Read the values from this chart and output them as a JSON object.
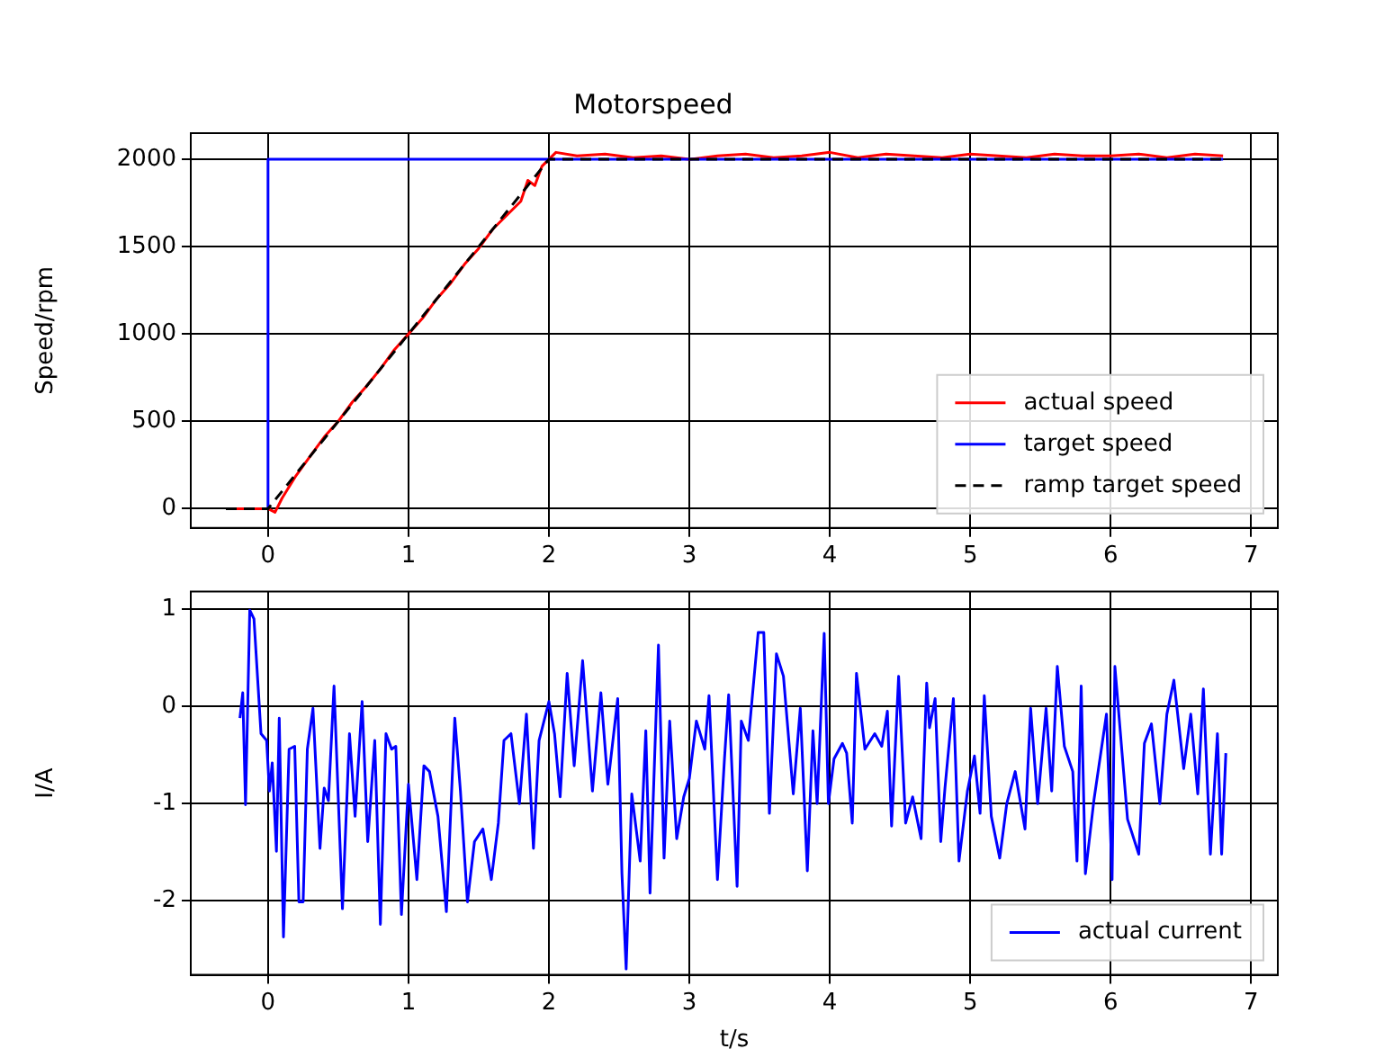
{
  "chart_data": [
    {
      "type": "line",
      "title": "Motorspeed",
      "ylabel": "Speed/rpm",
      "xlim": [
        -0.55,
        7.19
      ],
      "xticks": [
        0,
        1,
        2,
        3,
        4,
        5,
        6,
        7
      ],
      "ylim": [
        -110,
        2150
      ],
      "yticks": [
        0,
        500,
        1000,
        1500,
        2000
      ],
      "grid": true,
      "legend": "lower right",
      "series": [
        {
          "name": "actual speed",
          "color": "#ff0000",
          "x": [
            -0.3,
            0,
            0.05,
            0.1,
            0.2,
            0.3,
            0.4,
            0.5,
            0.6,
            0.7,
            0.8,
            0.9,
            1.0,
            1.1,
            1.2,
            1.3,
            1.4,
            1.5,
            1.6,
            1.7,
            1.8,
            1.85,
            1.9,
            1.95,
            2.0,
            2.05,
            2.2,
            2.4,
            2.6,
            2.8,
            3.0,
            3.2,
            3.4,
            3.6,
            3.8,
            4.0,
            4.2,
            4.4,
            4.6,
            4.8,
            5.0,
            5.2,
            5.4,
            5.6,
            5.8,
            6.0,
            6.2,
            6.4,
            6.6,
            6.8
          ],
          "values": [
            0,
            0,
            -20,
            60,
            190,
            300,
            410,
            500,
            610,
            700,
            800,
            910,
            1000,
            1090,
            1200,
            1290,
            1400,
            1490,
            1600,
            1680,
            1760,
            1880,
            1850,
            1960,
            2000,
            2040,
            2020,
            2030,
            2010,
            2020,
            2000,
            2020,
            2030,
            2010,
            2020,
            2040,
            2010,
            2030,
            2020,
            2010,
            2030,
            2020,
            2010,
            2030,
            2020,
            2020,
            2030,
            2010,
            2030,
            2020
          ]
        },
        {
          "name": "target speed",
          "color": "#0000ff",
          "x": [
            0,
            0,
            6.8
          ],
          "values": [
            0,
            2000,
            2000
          ]
        },
        {
          "name": "ramp target speed",
          "color": "#000000",
          "line_style": "dashed",
          "x": [
            -0.3,
            0,
            2,
            6.8
          ],
          "values": [
            0,
            0,
            2000,
            2000
          ]
        }
      ]
    },
    {
      "type": "line",
      "xlabel": "t/s",
      "ylabel": "I/A",
      "xlim": [
        -0.55,
        7.19
      ],
      "xticks": [
        0,
        1,
        2,
        3,
        4,
        5,
        6,
        7
      ],
      "ylim": [
        -2.76,
        1.18
      ],
      "yticks": [
        -2,
        -1,
        0,
        1
      ],
      "grid": true,
      "legend": "lower right",
      "series": [
        {
          "name": "actual current",
          "color": "#0000ff",
          "x": [
            -0.2,
            -0.18,
            -0.16,
            -0.13,
            -0.1,
            -0.05,
            -0.01,
            0.01,
            0.03,
            0.06,
            0.08,
            0.11,
            0.15,
            0.19,
            0.22,
            0.25,
            0.28,
            0.32,
            0.37,
            0.4,
            0.43,
            0.47,
            0.53,
            0.58,
            0.62,
            0.67,
            0.71,
            0.76,
            0.8,
            0.84,
            0.88,
            0.91,
            0.95,
            1.0,
            1.06,
            1.11,
            1.15,
            1.21,
            1.27,
            1.33,
            1.37,
            1.42,
            1.47,
            1.53,
            1.59,
            1.64,
            1.68,
            1.73,
            1.79,
            1.84,
            1.89,
            1.93,
            2.0,
            2.04,
            2.08,
            2.13,
            2.18,
            2.24,
            2.31,
            2.37,
            2.42,
            2.49,
            2.52,
            2.55,
            2.59,
            2.65,
            2.69,
            2.72,
            2.78,
            2.82,
            2.86,
            2.91,
            2.96,
            3.0,
            3.05,
            3.11,
            3.14,
            3.2,
            3.25,
            3.28,
            3.34,
            3.37,
            3.42,
            3.49,
            3.53,
            3.57,
            3.62,
            3.67,
            3.74,
            3.79,
            3.84,
            3.88,
            3.91,
            3.96,
            3.99,
            4.03,
            4.09,
            4.12,
            4.16,
            4.19,
            4.25,
            4.32,
            4.37,
            4.41,
            4.44,
            4.49,
            4.54,
            4.59,
            4.65,
            4.69,
            4.71,
            4.75,
            4.79,
            4.82,
            4.88,
            4.92,
            4.98,
            5.03,
            5.07,
            5.1,
            5.15,
            5.21,
            5.26,
            5.32,
            5.39,
            5.43,
            5.48,
            5.54,
            5.58,
            5.62,
            5.67,
            5.73,
            5.76,
            5.79,
            5.82,
            5.88,
            5.97,
            6.01,
            6.03,
            6.12,
            6.2,
            6.24,
            6.29,
            6.35,
            6.4,
            6.45,
            6.52,
            6.57,
            6.62,
            6.66,
            6.71,
            6.76,
            6.79,
            6.82
          ],
          "values": [
            -0.12,
            0.14,
            -1.01,
            0.99,
            0.9,
            -0.28,
            -0.35,
            -0.87,
            -0.58,
            -1.49,
            -0.12,
            -2.37,
            -0.44,
            -0.41,
            -2.01,
            -2.01,
            -0.44,
            -0.02,
            -1.46,
            -0.84,
            -0.97,
            0.21,
            -2.08,
            -0.28,
            -1.13,
            0.05,
            -1.39,
            -0.35,
            -2.24,
            -0.28,
            -0.44,
            -0.41,
            -2.14,
            -0.8,
            -1.78,
            -0.61,
            -0.67,
            -1.13,
            -2.11,
            -0.12,
            -0.87,
            -2.01,
            -1.39,
            -1.26,
            -1.78,
            -1.2,
            -0.35,
            -0.28,
            -1.0,
            -0.08,
            -1.46,
            -0.35,
            0.05,
            -0.28,
            -0.93,
            0.34,
            -0.61,
            0.47,
            -0.87,
            0.14,
            -0.8,
            0.08,
            -1.72,
            -2.7,
            -0.9,
            -1.59,
            -0.25,
            -1.92,
            0.63,
            -1.56,
            -0.15,
            -1.36,
            -0.93,
            -0.74,
            -0.15,
            -0.44,
            0.11,
            -1.78,
            -0.54,
            0.12,
            -1.85,
            -0.15,
            -0.35,
            0.76,
            0.76,
            -1.1,
            0.54,
            0.31,
            -0.9,
            -0.02,
            -1.69,
            -0.25,
            -1.0,
            0.75,
            -1.0,
            -0.54,
            -0.38,
            -0.48,
            -1.2,
            0.34,
            -0.44,
            -0.28,
            -0.41,
            -0.05,
            -1.23,
            0.31,
            -1.2,
            -0.93,
            -1.36,
            0.24,
            -0.22,
            0.08,
            -1.39,
            -0.84,
            0.08,
            -1.59,
            -0.87,
            -0.51,
            -1.1,
            0.11,
            -1.13,
            -1.56,
            -1.0,
            -0.67,
            -1.26,
            -0.02,
            -1.0,
            -0.02,
            -0.87,
            0.41,
            -0.41,
            -0.67,
            -1.59,
            0.21,
            -1.72,
            -0.97,
            -0.08,
            -1.78,
            0.41,
            -1.16,
            -1.52,
            -0.38,
            -0.18,
            -1.0,
            -0.08,
            0.27,
            -0.64,
            -0.08,
            -0.9,
            0.18,
            -1.52,
            -0.28,
            -1.52,
            -0.48
          ]
        }
      ]
    }
  ]
}
